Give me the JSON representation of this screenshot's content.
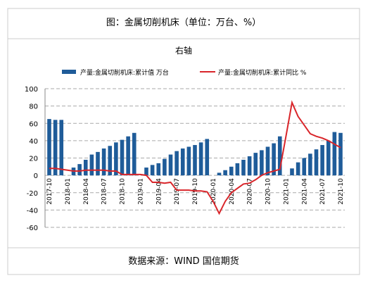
{
  "header": "图：金属切削机床（单位：万台、%）",
  "chart_data": {
    "type": "bar-line",
    "title": "右轴",
    "categories": [
      "2017-10",
      null,
      null,
      "2018-01",
      null,
      null,
      "2018-04",
      null,
      null,
      "2018-07",
      null,
      null,
      "2018-10",
      null,
      null,
      "2019-01",
      null,
      null,
      "2019-04",
      null,
      null,
      "2019-07",
      null,
      null,
      "2019-10",
      null,
      null,
      "2020-01",
      null,
      null,
      "2020-04",
      null,
      null,
      "2020-07",
      null,
      null,
      "2020-10",
      null,
      null,
      "2021-01",
      null,
      null,
      "2021-04",
      null,
      null,
      "2021-07",
      null,
      null,
      "2021-10"
    ],
    "series": [
      {
        "name": "产量:金属切削机床:累计值 万台",
        "type": "bar",
        "color": "#1f5c99",
        "values": [
          65,
          64,
          64,
          null,
          9,
          13,
          18,
          24,
          27,
          31,
          34,
          38,
          41,
          45,
          49,
          null,
          9,
          12,
          14,
          19,
          24,
          28,
          31,
          33,
          35,
          38,
          42,
          null,
          3,
          6,
          10,
          14,
          18,
          22,
          26,
          29,
          33,
          37,
          45,
          null,
          8,
          15,
          20,
          25,
          30,
          35,
          40,
          50,
          49
        ]
      },
      {
        "name": "产量:金属切削机床:累计同比 %",
        "type": "line",
        "color": "#d9252a",
        "values": [
          8,
          8,
          7,
          6,
          5,
          5,
          6,
          6,
          6,
          6,
          5,
          5,
          1,
          1,
          1,
          1,
          0,
          -8,
          -8,
          -9,
          -8,
          -17,
          -17,
          -17,
          -18,
          -18,
          -19,
          -30,
          -44,
          -30,
          -20,
          -15,
          -10,
          -9,
          -5,
          0,
          3,
          5,
          7,
          45,
          84,
          68,
          58,
          48,
          45,
          43,
          40,
          36,
          32
        ]
      }
    ],
    "ylim": [
      -60,
      100
    ],
    "yticks": [
      -60,
      -40,
      -20,
      0,
      20,
      40,
      60,
      80,
      100
    ],
    "grid": true
  },
  "footer": "数据来源：WIND 国信期货"
}
